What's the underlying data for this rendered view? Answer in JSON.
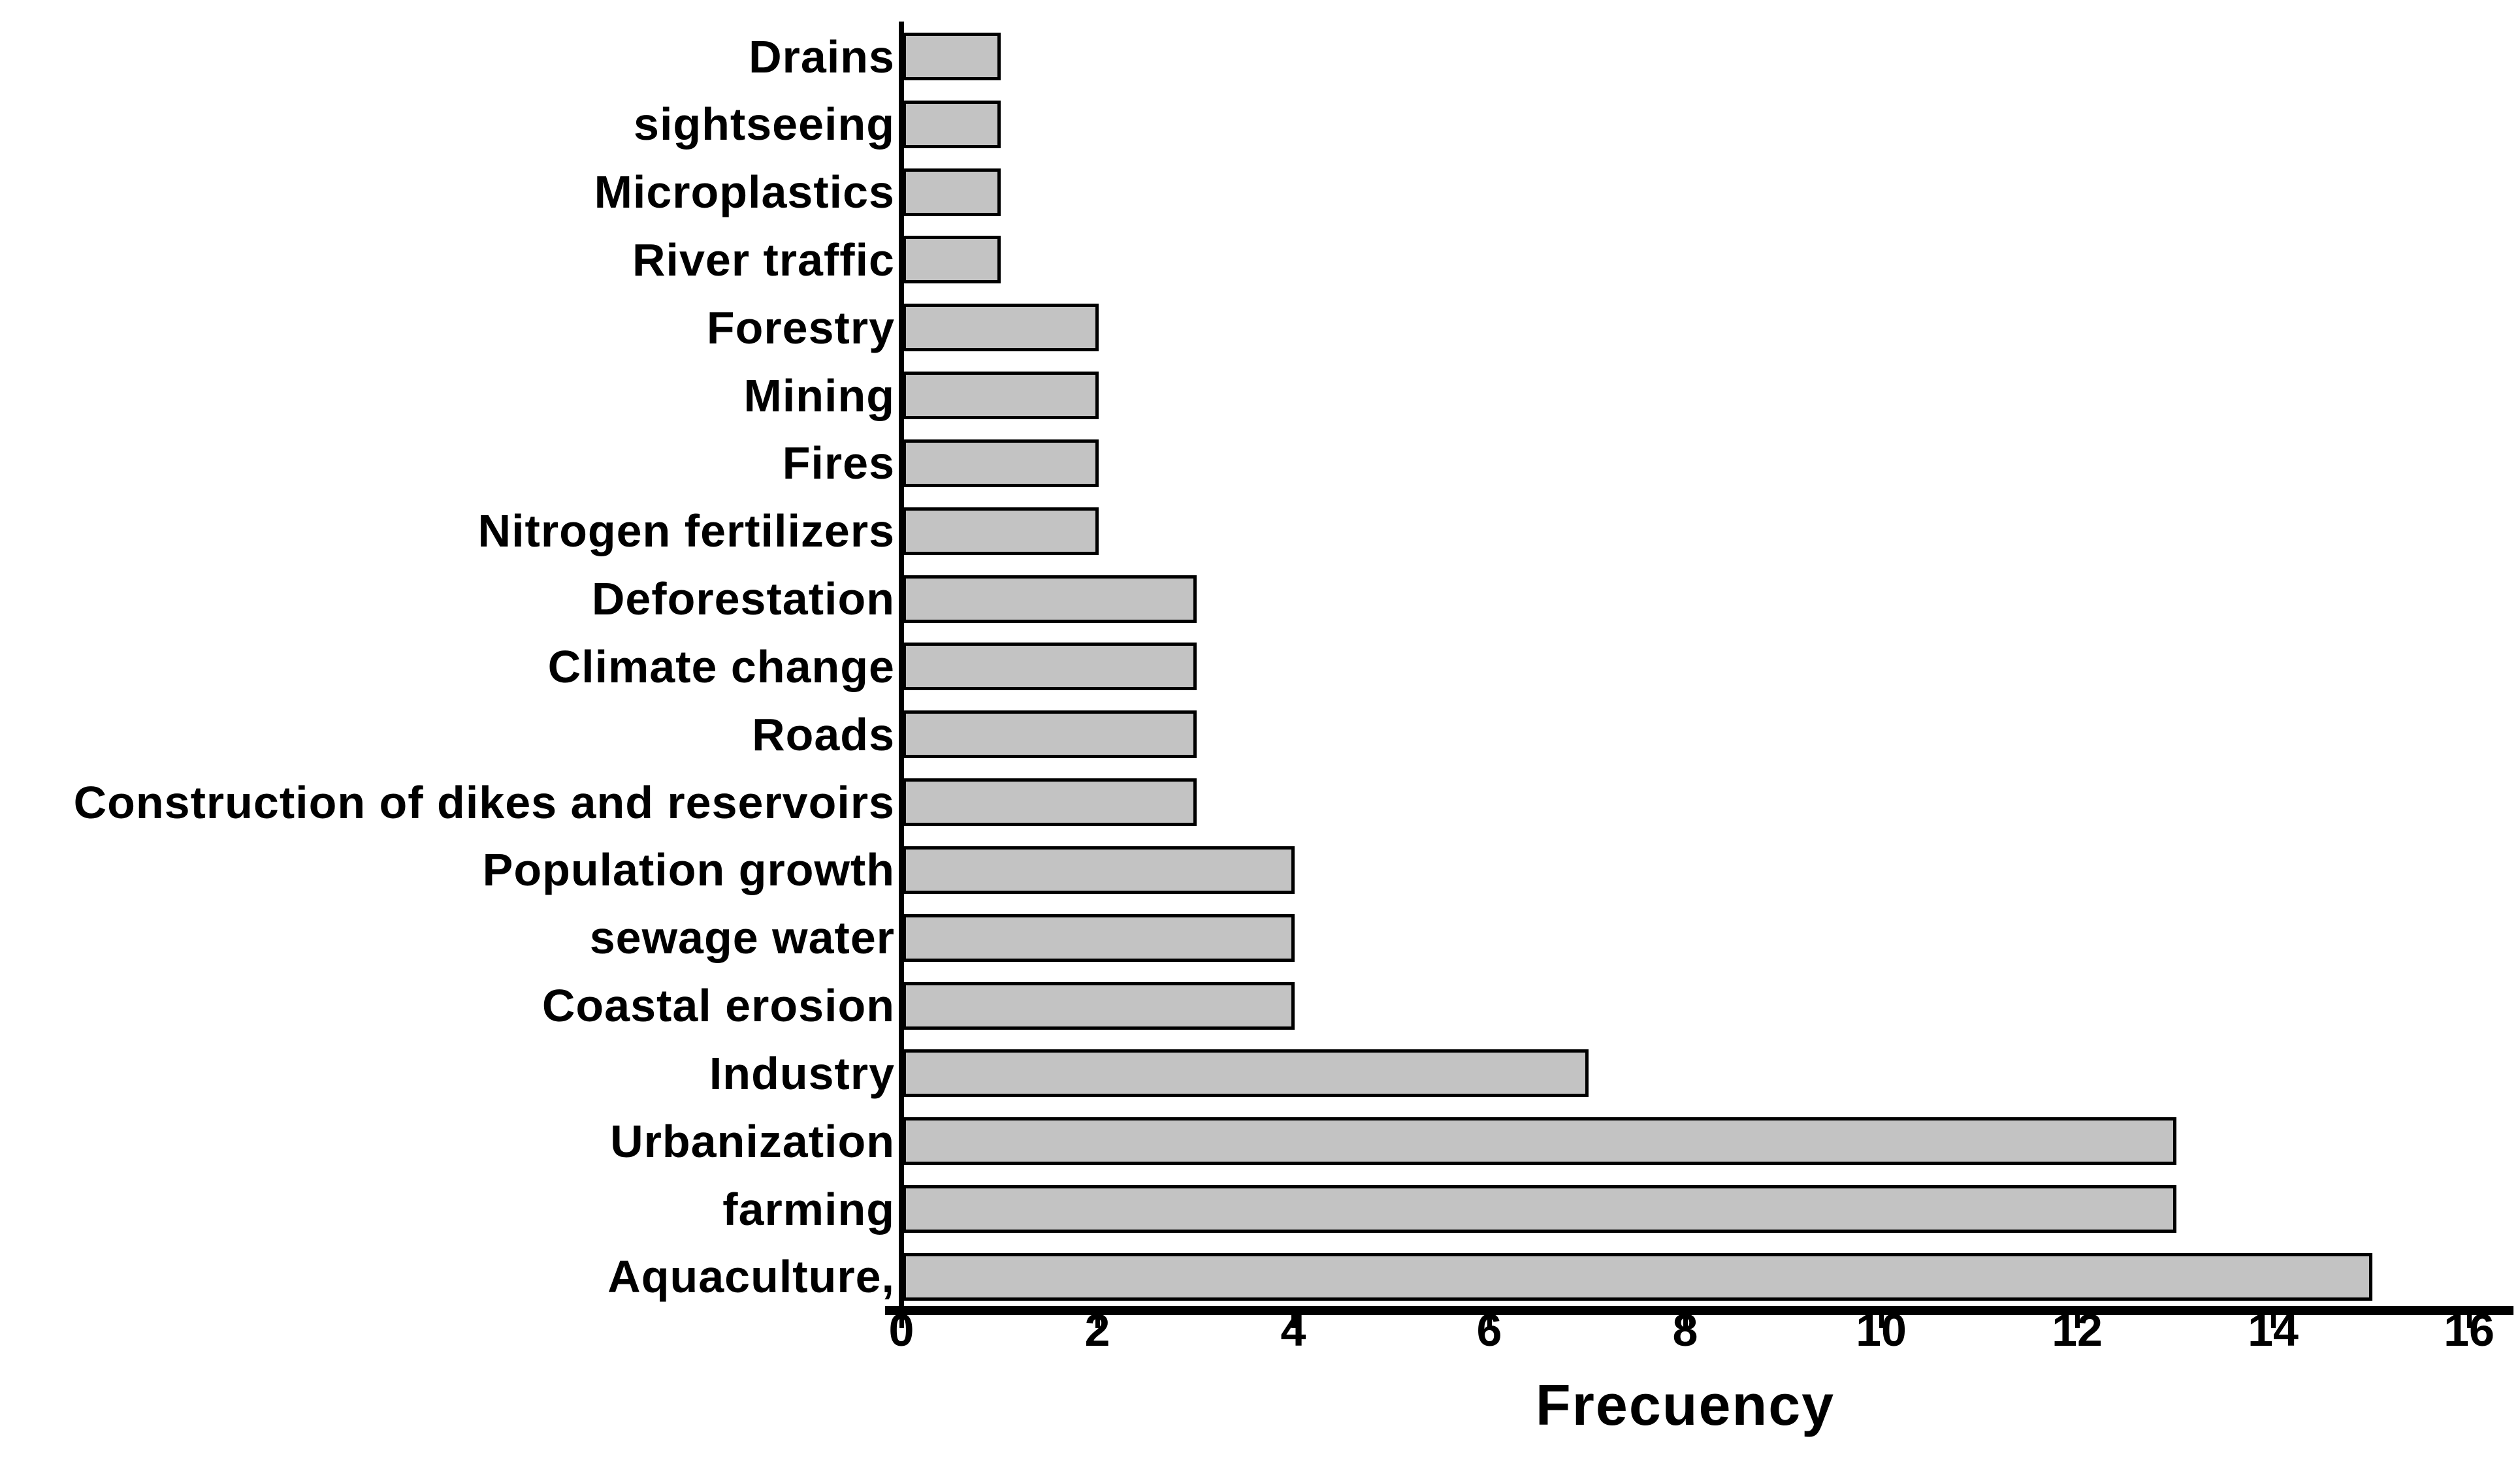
{
  "chart_data": {
    "type": "bar",
    "orientation": "horizontal",
    "title": "",
    "xlabel": "Frecuency",
    "ylabel": "",
    "categories": [
      "Drains",
      "sightseeing",
      "Microplastics",
      "River traffic",
      "Forestry",
      "Mining",
      "Fires",
      "Nitrogen fertilizers",
      "Deforestation",
      "Climate change",
      "Roads",
      "Construction of dikes and reservoirs",
      "Population growth",
      "sewage water",
      "Coastal erosion",
      "Industry",
      "Urbanization",
      "farming",
      "Aquaculture,"
    ],
    "values": [
      1,
      1,
      1,
      1,
      2,
      2,
      2,
      2,
      3,
      3,
      3,
      3,
      4,
      4,
      4,
      7,
      13,
      13,
      15
    ],
    "xlim": [
      0,
      16
    ],
    "xticks": [
      0,
      2,
      4,
      6,
      8,
      10,
      12,
      14,
      16
    ],
    "grid": false,
    "legend": false,
    "colors": {
      "bar_fill": "#c3c3c3",
      "bar_border": "#000000",
      "axis": "#000000",
      "text": "#000000",
      "background": "#ffffff"
    }
  }
}
